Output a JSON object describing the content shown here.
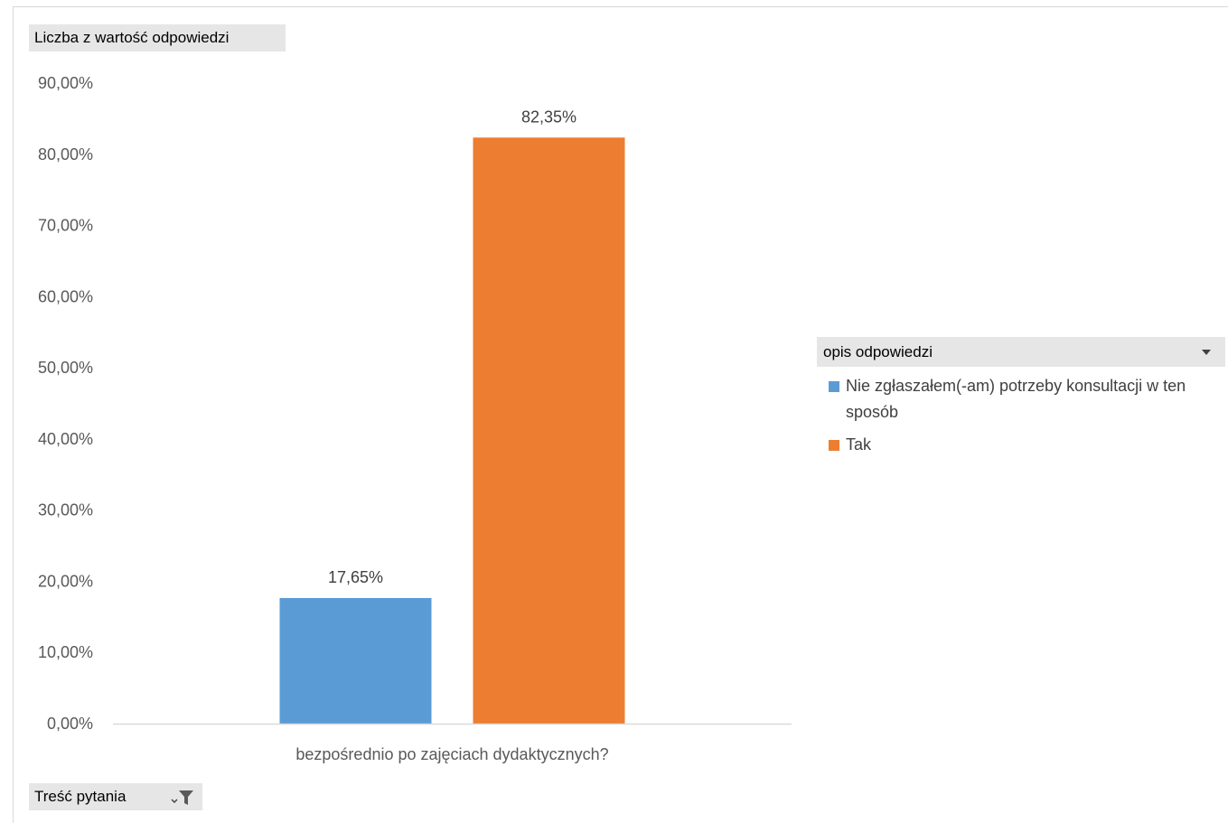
{
  "pivot": {
    "value_field_label": "Liczba z wartość odpowiedzi",
    "axis_field_label": "Treść pytania",
    "legend_title": "opis odpowiedzi"
  },
  "colors": {
    "series_1": "#5b9bd5",
    "series_2": "#ed7d31",
    "gridline": "#d9d9d9",
    "button_bg": "#e6e6e6"
  },
  "chart_data": {
    "type": "bar",
    "title": "",
    "xlabel": "",
    "ylabel": "",
    "categories": [
      "bezpośrednio po zajęciach dydaktycznych?"
    ],
    "series": [
      {
        "name": "Nie zgłaszałem(-am) potrzeby konsultacji w ten sposób",
        "values": [
          17.65
        ],
        "labels": [
          "17,65%"
        ],
        "color": "#5b9bd5"
      },
      {
        "name": "Tak",
        "values": [
          82.35
        ],
        "labels": [
          "82,35%"
        ],
        "color": "#ed7d31"
      }
    ],
    "ylim": [
      0,
      90
    ],
    "yticks": [
      {
        "value": 0,
        "label": "0,00%"
      },
      {
        "value": 10,
        "label": "10,00%"
      },
      {
        "value": 20,
        "label": "20,00%"
      },
      {
        "value": 30,
        "label": "30,00%"
      },
      {
        "value": 40,
        "label": "40,00%"
      },
      {
        "value": 50,
        "label": "50,00%"
      },
      {
        "value": 60,
        "label": "60,00%"
      },
      {
        "value": 70,
        "label": "70,00%"
      },
      {
        "value": 80,
        "label": "80,00%"
      },
      {
        "value": 90,
        "label": "90,00%"
      }
    ],
    "grid": false,
    "legend_position": "right"
  }
}
